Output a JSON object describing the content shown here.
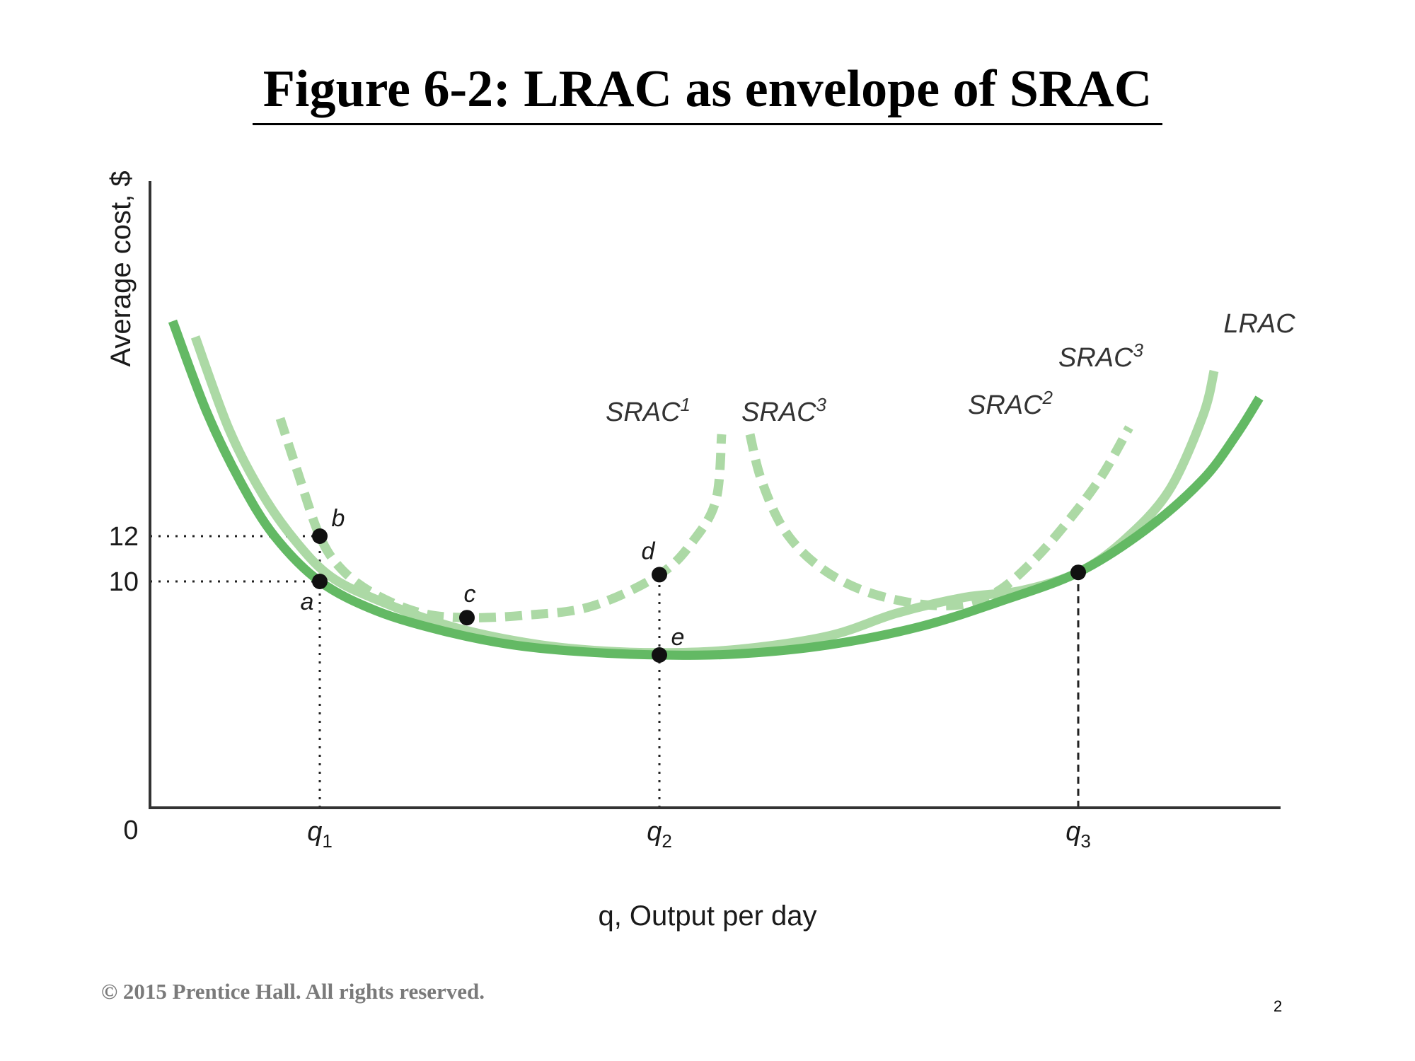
{
  "slide": {
    "title": "Figure 6-2: LRAC as envelope of SRAC",
    "copyright": "© 2015 Prentice Hall. All rights reserved.",
    "page_number": "2"
  },
  "colors": {
    "lrac": "#63b964",
    "srac_light": "#acd9a5",
    "points": "#111111",
    "axis": "#333333"
  },
  "chart_data": {
    "type": "line",
    "title": "",
    "xlabel": "q, Output per day",
    "ylabel": "Average cost, $",
    "origin_label": "0",
    "xlim": [
      0,
      10
    ],
    "ylim": [
      0,
      25
    ],
    "y_ticks": [
      {
        "value": 12,
        "label": "12"
      },
      {
        "value": 10,
        "label": "10"
      }
    ],
    "x_ticks": [
      {
        "value": 1.5,
        "label": "q",
        "sub": "1"
      },
      {
        "value": 4.5,
        "label": "q",
        "sub": "2"
      },
      {
        "value": 8.2,
        "label": "q",
        "sub": "3"
      }
    ],
    "series": [
      {
        "name": "LRAC",
        "sup": "",
        "style": "solid-dark",
        "label_at": [
          9.8,
          21.0
        ],
        "points": [
          [
            0.2,
            21.5
          ],
          [
            0.5,
            17.5
          ],
          [
            0.8,
            14.4
          ],
          [
            1.1,
            12.0
          ],
          [
            1.5,
            10.0
          ],
          [
            2.0,
            8.7
          ],
          [
            2.6,
            7.8
          ],
          [
            3.2,
            7.2
          ],
          [
            3.8,
            6.9
          ],
          [
            4.5,
            6.75
          ],
          [
            5.2,
            6.8
          ],
          [
            6.0,
            7.2
          ],
          [
            6.8,
            8.0
          ],
          [
            7.5,
            9.1
          ],
          [
            8.2,
            10.4
          ],
          [
            8.8,
            12.3
          ],
          [
            9.3,
            14.5
          ],
          [
            9.6,
            16.5
          ],
          [
            9.8,
            18.1
          ]
        ]
      },
      {
        "name": "SRAC",
        "sup": "1",
        "style": "dashed",
        "label_at": [
          4.4,
          17.1
        ],
        "points": [
          [
            1.15,
            17.2
          ],
          [
            1.3,
            14.9
          ],
          [
            1.5,
            12.0
          ],
          [
            1.7,
            10.5
          ],
          [
            2.0,
            9.4
          ],
          [
            2.4,
            8.6
          ],
          [
            2.8,
            8.4
          ],
          [
            3.3,
            8.5
          ],
          [
            3.9,
            8.9
          ],
          [
            4.5,
            10.3
          ],
          [
            4.8,
            11.8
          ],
          [
            5.0,
            13.6
          ],
          [
            5.05,
            16.5
          ]
        ]
      },
      {
        "name": "SRAC",
        "sup": "3",
        "style": "light-solid",
        "label_at": [
          5.6,
          17.1
        ],
        "points": [
          [
            0.4,
            20.8
          ],
          [
            0.7,
            16.7
          ],
          [
            1.0,
            13.8
          ],
          [
            1.3,
            11.7
          ],
          [
            1.6,
            10.2
          ],
          [
            2.0,
            9.2
          ],
          [
            2.6,
            8.1
          ],
          [
            3.2,
            7.4
          ],
          [
            3.8,
            7.0
          ],
          [
            4.5,
            6.85
          ],
          [
            5.2,
            7.0
          ],
          [
            6.0,
            7.6
          ],
          [
            6.6,
            8.6
          ],
          [
            7.2,
            9.3
          ],
          [
            7.7,
            9.6
          ],
          [
            8.2,
            10.4
          ],
          [
            8.6,
            11.8
          ],
          [
            9.0,
            14.0
          ],
          [
            9.3,
            17.3
          ],
          [
            9.4,
            19.3
          ]
        ]
      },
      {
        "name": "SRAC",
        "sup": "2",
        "style": "dashed",
        "label_at": [
          7.6,
          17.4
        ],
        "points": [
          [
            5.3,
            16.5
          ],
          [
            5.4,
            14.5
          ],
          [
            5.6,
            12.3
          ],
          [
            5.9,
            10.7
          ],
          [
            6.3,
            9.6
          ],
          [
            6.8,
            9.0
          ],
          [
            7.2,
            9.0
          ],
          [
            7.5,
            9.6
          ],
          [
            7.8,
            10.9
          ],
          [
            8.1,
            12.6
          ],
          [
            8.4,
            14.6
          ],
          [
            8.65,
            16.8
          ]
        ]
      },
      {
        "name": "SRAC",
        "sup": "3",
        "style": "label-only",
        "label_at": [
          8.4,
          19.5
        ],
        "points": []
      }
    ],
    "points": [
      {
        "name": "a",
        "x": 1.5,
        "y": 10.0,
        "label_pos": "below-left"
      },
      {
        "name": "b",
        "x": 1.5,
        "y": 12.0,
        "label_pos": "above-right"
      },
      {
        "name": "c",
        "x": 2.8,
        "y": 8.4,
        "label_pos": "above"
      },
      {
        "name": "d",
        "x": 4.5,
        "y": 10.3,
        "label_pos": "above-left"
      },
      {
        "name": "e",
        "x": 4.5,
        "y": 6.75,
        "label_pos": "above-right"
      },
      {
        "name": "",
        "x": 8.2,
        "y": 10.4,
        "label_pos": "none"
      }
    ],
    "guides": [
      {
        "type": "h-dotted",
        "y": 12,
        "x_to": 1.5
      },
      {
        "type": "h-dotted",
        "y": 10,
        "x_to": 1.5
      },
      {
        "type": "v-dotted",
        "x": 1.5,
        "y_to": 12.0
      },
      {
        "type": "v-dotted",
        "x": 4.5,
        "y_to": 10.3
      },
      {
        "type": "v-dashed",
        "x": 8.2,
        "y_to": 10.4
      }
    ]
  }
}
